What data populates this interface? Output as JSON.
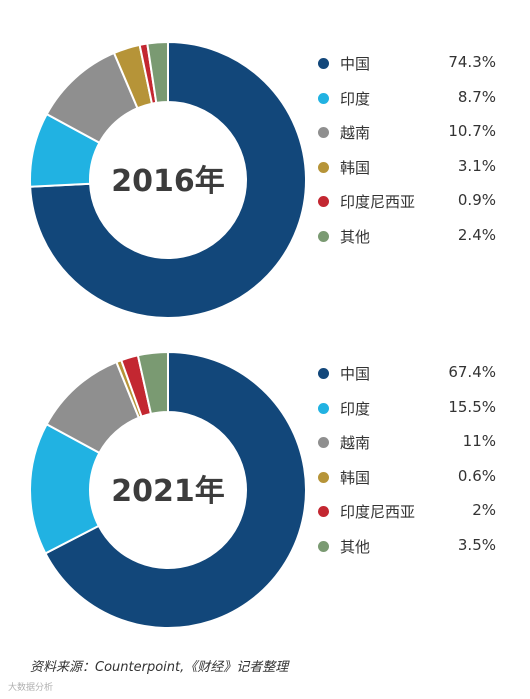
{
  "chart_data": [
    {
      "type": "pie",
      "center_label": "2016年",
      "labels": [
        "中国",
        "印度",
        "越南",
        "韩国",
        "印度尼西亚",
        "其他"
      ],
      "values": [
        74.3,
        8.7,
        10.7,
        3.1,
        0.9,
        2.4
      ],
      "value_labels": [
        "74.3%",
        "8.7%",
        "10.7%",
        "3.1%",
        "0.9%",
        "2.4%"
      ],
      "colors": [
        "#12477a",
        "#21b2e2",
        "#8f8f8f",
        "#b69438",
        "#c32731",
        "#7a9a72"
      ],
      "legend": "right"
    },
    {
      "type": "pie",
      "center_label": "2021年",
      "labels": [
        "中国",
        "印度",
        "越南",
        "韩国",
        "印度尼西亚",
        "其他"
      ],
      "values": [
        67.4,
        15.5,
        11,
        0.6,
        2,
        3.5
      ],
      "value_labels": [
        "67.4%",
        "15.5%",
        "11%",
        "0.6%",
        "2%",
        "3.5%"
      ],
      "colors": [
        "#12477a",
        "#21b2e2",
        "#8f8f8f",
        "#b69438",
        "#c32731",
        "#7a9a72"
      ],
      "legend": "right"
    }
  ],
  "source": "资料来源：Counterpoint,《财经》记者整理",
  "watermark": "大数据分析"
}
